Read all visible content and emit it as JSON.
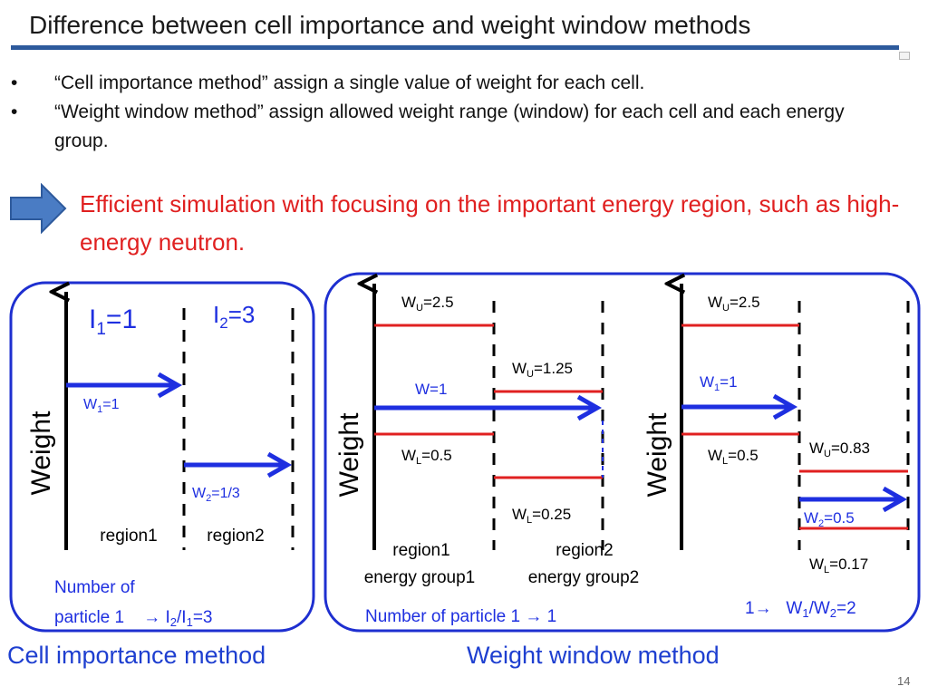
{
  "slide": {
    "title": "Difference between cell importance and weight window methods",
    "bullets": [
      {
        "marker": "•",
        "text": "“Cell importance method” assign a single value of weight for each cell."
      },
      {
        "marker": "•",
        "text": "“Weight window method” assign allowed weight range (window) for each cell and each energy group."
      }
    ],
    "highlight": "Efficient simulation with focusing on the important energy region, such as high-energy neutron.",
    "page_number": "14"
  },
  "cell_importance_panel": {
    "axis_label": "Weight",
    "i1": {
      "base": "I",
      "sub": "1",
      "tail": "=1"
    },
    "i2": {
      "base": "I",
      "sub": "2",
      "tail": "=3"
    },
    "w1": {
      "base": "W",
      "sub": "1",
      "tail": "=1"
    },
    "w2": {
      "base": "W",
      "sub": "2",
      "tail": "=1/3"
    },
    "region1": "region1",
    "region2": "region2",
    "note_line1": "Number of",
    "note_line2_prefix": "particle 1    → ",
    "note_ratio": {
      "a": "I",
      "a_sub": "2",
      "slash": "/",
      "b": "I",
      "b_sub": "1",
      "tail": "=3"
    },
    "footer": "Cell importance method"
  },
  "weight_window_panel_a": {
    "axis_label": "Weight",
    "wu1": {
      "base": "W",
      "sub": "U",
      "tail": "=2.5"
    },
    "wl1": {
      "base": "W",
      "sub": "L",
      "tail": "=0.5"
    },
    "wu2": {
      "base": "W",
      "sub": "U",
      "tail": "=1.25"
    },
    "wl2": {
      "base": "W",
      "sub": "L",
      "tail": "=0.25"
    },
    "w": "W=1",
    "region1": "region1",
    "region2": "region2",
    "group1": "energy group1",
    "group2": "energy group2",
    "note": "Number of particle 1 → 1"
  },
  "weight_window_panel_b": {
    "axis_label": "Weight",
    "wu1": {
      "base": "W",
      "sub": "U",
      "tail": "=2.5"
    },
    "wl1": {
      "base": "W",
      "sub": "L",
      "tail": "=0.5"
    },
    "wu2": {
      "base": "W",
      "sub": "U",
      "tail": "=0.83"
    },
    "wl2": {
      "base": "W",
      "sub": "L",
      "tail": "=0.17"
    },
    "w1": {
      "base": "W",
      "sub": "1",
      "tail": "=1"
    },
    "w2": {
      "base": "W",
      "sub": "2",
      "tail": "=0.5"
    },
    "note": {
      "prefix": "1→   ",
      "a": "W",
      "a_sub": "1",
      "slash": "/",
      "b": "W",
      "b_sub": "2",
      "tail": "=2"
    },
    "footer": "Weight window method"
  },
  "colors": {
    "arrow": "#1e2fe0",
    "window_line": "#e02020",
    "panel_border": "#1e2fd0",
    "highlight": "#e02020",
    "title_bar": "#2d5a9c",
    "arrow_icon": "#4a7cc4"
  }
}
